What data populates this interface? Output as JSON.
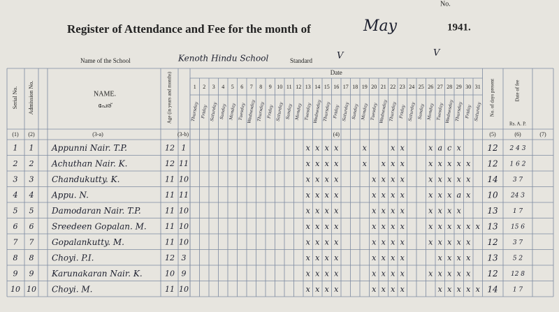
{
  "header": {
    "top_no": "No.",
    "title": "Register of Attendance and Fee for the month of",
    "month": "May",
    "year": "1941.",
    "school_label": "Name of the School",
    "school": "Kenoth Hindu School",
    "standard_label": "Standard",
    "standard": "V",
    "division": "V"
  },
  "columns": {
    "serial": "Serial No.",
    "admission": "Admission No.",
    "name": "NAME.",
    "name_ml": "പേര്",
    "age": "Age (in years and months)",
    "date": "Date",
    "days": [
      1,
      2,
      3,
      4,
      5,
      6,
      7,
      8,
      9,
      10,
      11,
      12,
      13,
      14,
      15,
      16,
      17,
      18,
      19,
      20,
      21,
      22,
      23,
      24,
      25,
      26,
      27,
      28,
      29,
      30,
      31
    ],
    "weekdays": [
      "Thursday",
      "Friday",
      "Saturday",
      "Sunday",
      "Monday",
      "Tuesday",
      "Wednesday",
      "Thursday",
      "Friday",
      "Saturday",
      "Sunday",
      "Monday",
      "Tuesday",
      "Wednesday",
      "Thursday",
      "Friday",
      "Saturday",
      "Sunday",
      "Monday",
      "Tuesday",
      "Wednesday",
      "Thursday",
      "Friday",
      "Saturday",
      "Sunday",
      "Monday",
      "Tuesday",
      "Wednesday",
      "Thursday",
      "Friday",
      "Saturday"
    ],
    "present": "No. of days present",
    "fee": "Date of fee",
    "fee_units": "Rs. A. P.",
    "numbers": [
      "(1)",
      "(2)",
      "(3-a)",
      "(3-b)",
      "(4)",
      "(5)",
      "(6)",
      "(7)"
    ]
  },
  "rows": [
    {
      "serial": "1",
      "admission": "1",
      "name": "Appunni Nair. T.P.",
      "years": "12",
      "months": "1",
      "marks": {
        "13": "x",
        "14": "x",
        "15": "x",
        "16": "x",
        "19": "x",
        "22": "x",
        "23": "x",
        "26": "x",
        "27": "a",
        "28": "c",
        "29": "x"
      },
      "present": "12",
      "fee": "2 4 3"
    },
    {
      "serial": "2",
      "admission": "2",
      "name": "Achuthan Nair. K.",
      "years": "12",
      "months": "11",
      "marks": {
        "13": "x",
        "14": "x",
        "15": "x",
        "16": "x",
        "19": "x",
        "21": "x",
        "22": "x",
        "23": "x",
        "26": "x",
        "27": "x",
        "28": "x",
        "29": "x",
        "30": "x"
      },
      "present": "12",
      "fee": "1 6 2"
    },
    {
      "serial": "3",
      "admission": "3",
      "name": "Chandukutty. K.",
      "years": "11",
      "months": "10",
      "marks": {
        "13": "x",
        "14": "x",
        "15": "x",
        "16": "x",
        "20": "x",
        "21": "x",
        "22": "x",
        "23": "x",
        "26": "x",
        "27": "x",
        "28": "x",
        "29": "x",
        "30": "x"
      },
      "present": "14",
      "fee": "3 7"
    },
    {
      "serial": "4",
      "admission": "4",
      "name": "Appu. N.",
      "years": "11",
      "months": "11",
      "marks": {
        "13": "x",
        "14": "x",
        "15": "x",
        "16": "x",
        "20": "x",
        "21": "x",
        "22": "x",
        "23": "x",
        "26": "x",
        "27": "x",
        "28": "x",
        "29": "a",
        "30": "x"
      },
      "present": "10",
      "fee": "24 3"
    },
    {
      "serial": "5",
      "admission": "5",
      "name": "Damodaran Nair. T.P.",
      "years": "11",
      "months": "10",
      "marks": {
        "13": "x",
        "14": "x",
        "15": "x",
        "16": "x",
        "20": "x",
        "21": "x",
        "22": "x",
        "23": "x",
        "26": "x",
        "27": "x",
        "28": "x",
        "29": "x"
      },
      "present": "13",
      "fee": "1 7"
    },
    {
      "serial": "6",
      "admission": "6",
      "name": "Sreedeen Gopalan. M.",
      "years": "11",
      "months": "10",
      "marks": {
        "13": "x",
        "14": "x",
        "15": "x",
        "16": "x",
        "20": "x",
        "21": "x",
        "22": "x",
        "23": "x",
        "26": "x",
        "27": "x",
        "28": "x",
        "29": "x",
        "30": "x",
        "31": "x"
      },
      "present": "13",
      "fee": "15 6"
    },
    {
      "serial": "7",
      "admission": "7",
      "name": "Gopalankutty. M.",
      "years": "11",
      "months": "10",
      "marks": {
        "13": "x",
        "14": "x",
        "15": "x",
        "16": "x",
        "20": "x",
        "21": "x",
        "22": "x",
        "23": "x",
        "26": "x",
        "27": "x",
        "28": "x",
        "29": "x",
        "30": "x"
      },
      "present": "12",
      "fee": "3 7"
    },
    {
      "serial": "8",
      "admission": "8",
      "name": "Choyi. P.I.",
      "years": "12",
      "months": "3",
      "marks": {
        "13": "x",
        "14": "x",
        "15": "x",
        "16": "x",
        "20": "x",
        "21": "x",
        "22": "x",
        "23": "x",
        "27": "x",
        "28": "x",
        "29": "x",
        "30": "x"
      },
      "present": "13",
      "fee": "5 2"
    },
    {
      "serial": "9",
      "admission": "9",
      "name": "Karunakaran Nair. K.",
      "years": "10",
      "months": "9",
      "marks": {
        "13": "x",
        "14": "x",
        "15": "x",
        "16": "x",
        "20": "x",
        "21": "x",
        "22": "x",
        "23": "x",
        "26": "x",
        "27": "x",
        "28": "x",
        "29": "x",
        "30": "x"
      },
      "present": "12",
      "fee": "12 8"
    },
    {
      "serial": "10",
      "admission": "10",
      "name": "Choyi. M.",
      "years": "11",
      "months": "10",
      "marks": {
        "13": "x",
        "14": "x",
        "15": "x",
        "16": "x",
        "20": "x",
        "21": "x",
        "22": "x",
        "23": "x",
        "27": "x",
        "28": "x",
        "29": "x",
        "30": "x",
        "31": "x"
      },
      "present": "14",
      "fee": "1 7"
    }
  ]
}
